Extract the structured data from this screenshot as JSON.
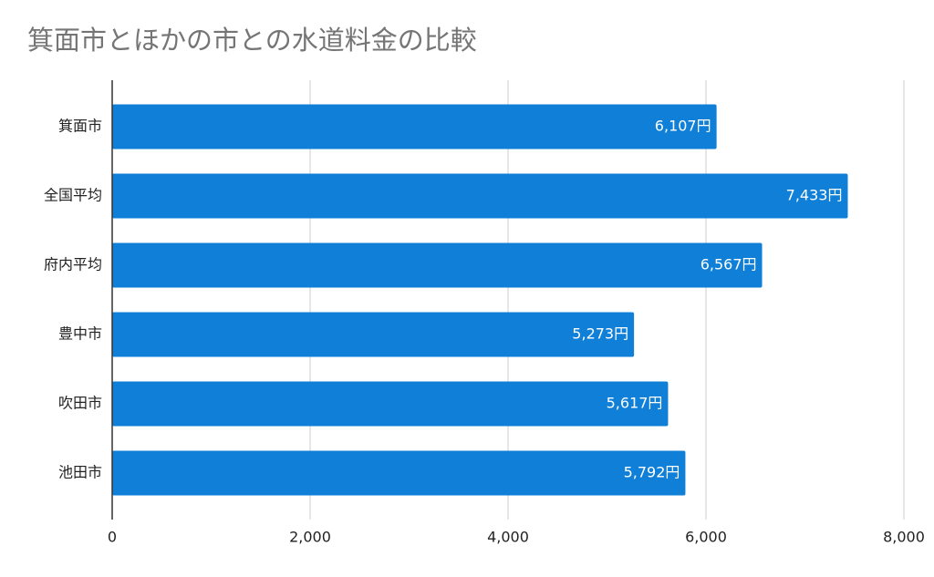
{
  "chart_data": {
    "type": "bar",
    "orientation": "horizontal",
    "title": "箕面市とほかの市との水道料金の比較",
    "categories": [
      "箕面市",
      "全国平均",
      "府内平均",
      "豊中市",
      "吹田市",
      "池田市"
    ],
    "values": [
      6107,
      7433,
      6567,
      5273,
      5617,
      5792
    ],
    "value_labels": [
      "6,107円",
      "7,433円",
      "6,567円",
      "5,273円",
      "5,617円",
      "5,792円"
    ],
    "color": "#0f7fd7",
    "xlim": [
      0,
      8000
    ],
    "xticks": [
      0,
      {
        "value": 2000,
        "label": "2,000"
      },
      {
        "value": 4000,
        "label": "4,000"
      },
      {
        "value": 6000,
        "label": "6,000"
      },
      {
        "value": 8000,
        "label": "8,000"
      }
    ],
    "grid": true
  }
}
